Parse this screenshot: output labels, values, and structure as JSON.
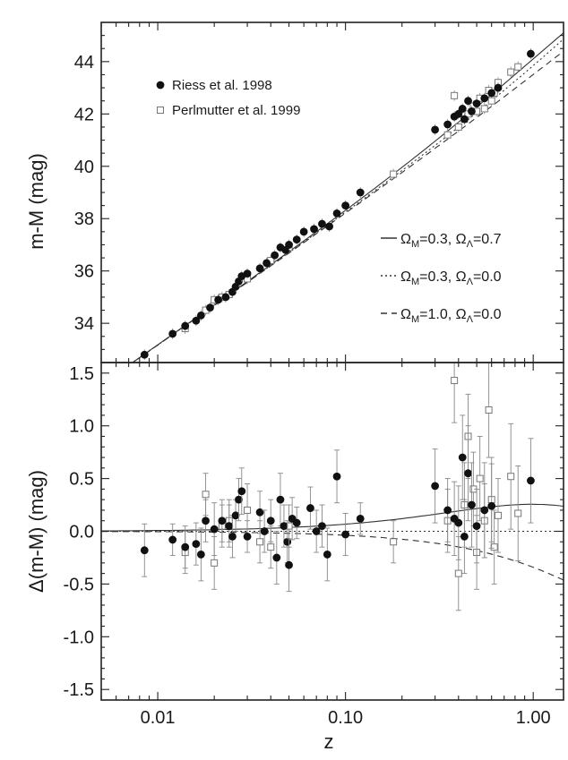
{
  "chart_data": [
    {
      "type": "scatter",
      "panel": "top",
      "x_scale": "log",
      "xlim": [
        0.005,
        1.45
      ],
      "ylim": [
        32.5,
        45.5
      ],
      "ylabel": "m-M (mag)",
      "y_ticks": [
        "34",
        "36",
        "38",
        "40",
        "42",
        "44"
      ],
      "grid": false,
      "legend_position": "top-left",
      "series": [
        {
          "name": "Riess et al. 1998",
          "marker": "filled-circle",
          "points": [
            [
              0.0085,
              32.8
            ],
            [
              0.012,
              33.6
            ],
            [
              0.014,
              33.9
            ],
            [
              0.016,
              34.1
            ],
            [
              0.017,
              34.3
            ],
            [
              0.019,
              34.6
            ],
            [
              0.021,
              34.9
            ],
            [
              0.023,
              35.0
            ],
            [
              0.025,
              35.2
            ],
            [
              0.026,
              35.4
            ],
            [
              0.027,
              35.6
            ],
            [
              0.028,
              35.8
            ],
            [
              0.03,
              35.9
            ],
            [
              0.035,
              36.1
            ],
            [
              0.038,
              36.3
            ],
            [
              0.042,
              36.6
            ],
            [
              0.045,
              36.9
            ],
            [
              0.048,
              36.8
            ],
            [
              0.05,
              37.0
            ],
            [
              0.055,
              37.2
            ],
            [
              0.06,
              37.5
            ],
            [
              0.068,
              37.6
            ],
            [
              0.075,
              37.8
            ],
            [
              0.082,
              37.7
            ],
            [
              0.09,
              38.2
            ],
            [
              0.1,
              38.5
            ],
            [
              0.12,
              39.0
            ],
            [
              0.3,
              41.4
            ],
            [
              0.35,
              41.6
            ],
            [
              0.38,
              41.9
            ],
            [
              0.4,
              42.0
            ],
            [
              0.42,
              42.2
            ],
            [
              0.43,
              41.8
            ],
            [
              0.45,
              42.5
            ],
            [
              0.47,
              42.1
            ],
            [
              0.5,
              42.4
            ],
            [
              0.55,
              42.6
            ],
            [
              0.6,
              42.8
            ],
            [
              0.65,
              43.0
            ],
            [
              0.97,
              44.3
            ]
          ]
        },
        {
          "name": "Perlmutter et al. 1999",
          "marker": "open-square",
          "points": [
            [
              0.014,
              33.8
            ],
            [
              0.018,
              34.5
            ],
            [
              0.02,
              34.9
            ],
            [
              0.022,
              35.0
            ],
            [
              0.024,
              35.1
            ],
            [
              0.03,
              35.7
            ],
            [
              0.04,
              36.4
            ],
            [
              0.05,
              36.9
            ],
            [
              0.18,
              39.7
            ],
            [
              0.35,
              41.2
            ],
            [
              0.38,
              42.7
            ],
            [
              0.4,
              41.5
            ],
            [
              0.43,
              41.8
            ],
            [
              0.45,
              42.0
            ],
            [
              0.48,
              42.3
            ],
            [
              0.5,
              42.1
            ],
            [
              0.52,
              42.6
            ],
            [
              0.55,
              42.2
            ],
            [
              0.58,
              42.9
            ],
            [
              0.6,
              42.5
            ],
            [
              0.62,
              42.8
            ],
            [
              0.65,
              43.2
            ],
            [
              0.76,
              43.6
            ],
            [
              0.83,
              43.8
            ]
          ]
        }
      ],
      "model_curves": [
        {
          "name": "Ω_M=0.3, Ω_Λ=0.7",
          "om": 0.3,
          "ol": 0.7,
          "style": "solid"
        },
        {
          "name": "Ω_M=0.3, Ω_Λ=0.0",
          "om": 0.3,
          "ol": 0.0,
          "style": "dotted"
        },
        {
          "name": "Ω_M=1.0, Ω_Λ=0.0",
          "om": 1.0,
          "ol": 0.0,
          "style": "dashed"
        }
      ],
      "model_legend": [
        {
          "om": "0.3",
          "ol": "0.7"
        },
        {
          "om": "0.3",
          "ol": "0.0"
        },
        {
          "om": "1.0",
          "ol": "0.0"
        }
      ]
    },
    {
      "type": "scatter",
      "panel": "bottom",
      "x_scale": "log",
      "xlim": [
        0.005,
        1.45
      ],
      "ylim": [
        -1.6,
        1.6
      ],
      "xlabel": "z",
      "ylabel": "Δ(m-M) (mag)",
      "x_ticks": [
        "0.01",
        "0.10",
        "1.00"
      ],
      "y_ticks": [
        "-1.5",
        "-1.0",
        "-0.5",
        "0.0",
        "0.5",
        "1.0",
        "1.5"
      ],
      "reference_curve": "Ω_M=0.3, Ω_Λ=0.0",
      "series": [
        {
          "name": "Riess et al. 1998",
          "marker": "filled-circle",
          "points": [
            [
              0.0085,
              -0.18,
              0.25
            ],
            [
              0.012,
              -0.08,
              0.15
            ],
            [
              0.014,
              -0.15,
              0.2
            ],
            [
              0.016,
              -0.12,
              0.2
            ],
            [
              0.017,
              -0.22,
              0.25
            ],
            [
              0.018,
              0.1,
              0.2
            ],
            [
              0.02,
              0.02,
              0.25
            ],
            [
              0.022,
              0.1,
              0.2
            ],
            [
              0.024,
              0.05,
              0.2
            ],
            [
              0.025,
              -0.05,
              0.2
            ],
            [
              0.026,
              0.15,
              0.15
            ],
            [
              0.027,
              0.3,
              0.2
            ],
            [
              0.028,
              0.38,
              0.22
            ],
            [
              0.03,
              -0.05,
              0.15
            ],
            [
              0.035,
              0.18,
              0.2
            ],
            [
              0.037,
              0.0,
              0.2
            ],
            [
              0.04,
              0.1,
              0.2
            ],
            [
              0.043,
              -0.25,
              0.25
            ],
            [
              0.045,
              0.3,
              0.25
            ],
            [
              0.047,
              0.05,
              0.2
            ],
            [
              0.049,
              -0.1,
              0.2
            ],
            [
              0.05,
              -0.32,
              0.25
            ],
            [
              0.052,
              0.12,
              0.2
            ],
            [
              0.055,
              0.08,
              0.15
            ],
            [
              0.065,
              0.22,
              0.2
            ],
            [
              0.07,
              0.0,
              0.2
            ],
            [
              0.075,
              0.05,
              0.2
            ],
            [
              0.08,
              -0.22,
              0.25
            ],
            [
              0.09,
              0.52,
              0.25
            ],
            [
              0.1,
              -0.03,
              0.2
            ],
            [
              0.12,
              0.12,
              0.15
            ],
            [
              0.3,
              0.43,
              0.35
            ],
            [
              0.35,
              0.2,
              0.3
            ],
            [
              0.38,
              0.12,
              0.35
            ],
            [
              0.4,
              0.08,
              0.35
            ],
            [
              0.42,
              0.7,
              0.4
            ],
            [
              0.43,
              -0.05,
              0.35
            ],
            [
              0.45,
              0.55,
              0.45
            ],
            [
              0.47,
              0.25,
              0.4
            ],
            [
              0.5,
              0.05,
              0.35
            ],
            [
              0.55,
              0.2,
              0.45
            ],
            [
              0.6,
              0.24,
              0.4
            ],
            [
              0.97,
              0.48,
              0.4
            ]
          ]
        },
        {
          "name": "Perlmutter et al. 1999",
          "marker": "open-square",
          "points": [
            [
              0.014,
              -0.2,
              0.2
            ],
            [
              0.018,
              0.35,
              0.2
            ],
            [
              0.02,
              -0.3,
              0.25
            ],
            [
              0.022,
              0.05,
              0.2
            ],
            [
              0.024,
              0.1,
              0.2
            ],
            [
              0.03,
              0.2,
              0.25
            ],
            [
              0.035,
              -0.1,
              0.2
            ],
            [
              0.04,
              -0.15,
              0.2
            ],
            [
              0.05,
              0.05,
              0.2
            ],
            [
              0.18,
              -0.1,
              0.2
            ],
            [
              0.35,
              0.1,
              0.3
            ],
            [
              0.38,
              1.43,
              0.4
            ],
            [
              0.4,
              -0.4,
              0.35
            ],
            [
              0.43,
              0.25,
              0.4
            ],
            [
              0.45,
              0.9,
              0.4
            ],
            [
              0.48,
              0.4,
              0.35
            ],
            [
              0.5,
              -0.2,
              0.35
            ],
            [
              0.52,
              0.5,
              0.4
            ],
            [
              0.55,
              0.1,
              0.35
            ],
            [
              0.58,
              1.15,
              0.45
            ],
            [
              0.6,
              0.3,
              0.4
            ],
            [
              0.62,
              -0.15,
              0.35
            ],
            [
              0.65,
              0.15,
              0.35
            ],
            [
              0.76,
              0.52,
              0.5
            ],
            [
              0.83,
              0.17,
              0.45
            ]
          ]
        }
      ]
    }
  ]
}
